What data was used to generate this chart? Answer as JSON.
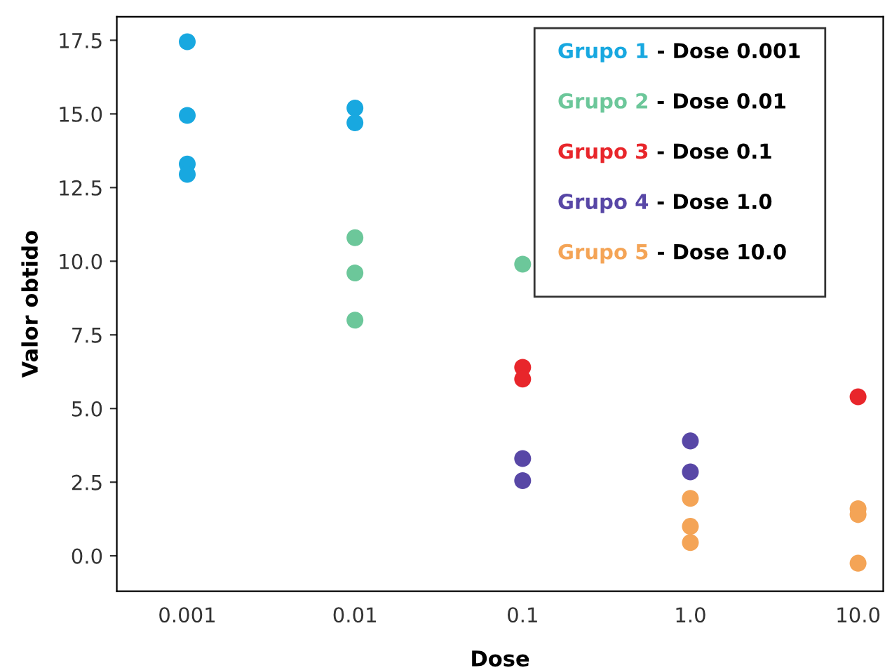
{
  "chart_data": {
    "type": "scatter",
    "xlabel": "Dose",
    "ylabel": "Valor obtido",
    "categories": [
      "0.001",
      "0.01",
      "0.1",
      "1.0",
      "10.0"
    ],
    "ylim": [
      -1.2,
      18.3
    ],
    "yticks": [
      {
        "value": 0,
        "label": "0.0"
      },
      2.5,
      {
        "value": 5,
        "label": "5.0"
      },
      7.5,
      {
        "value": 10,
        "label": "10.0"
      },
      12.5,
      {
        "value": 15,
        "label": "15.0"
      },
      17.5
    ],
    "series": [
      {
        "name": "Grupo 1 - Dose 0.001",
        "color": "#18a8e0",
        "x": [
          "0.001",
          "0.001",
          "0.001",
          "0.001",
          "0.01",
          "0.01"
        ],
        "values": [
          17.45,
          14.95,
          13.3,
          12.95,
          15.2,
          14.7
        ]
      },
      {
        "name": "Grupo 2 - Dose 0.01",
        "color": "#6cc79a",
        "x": [
          "0.01",
          "0.01",
          "0.01",
          "0.1"
        ],
        "values": [
          10.8,
          9.6,
          8.0,
          9.9
        ]
      },
      {
        "name": "Grupo 3 - Dose 0.1",
        "color": "#e8262b",
        "x": [
          "0.1",
          "0.1",
          "10.0"
        ],
        "values": [
          6.4,
          6.0,
          5.4
        ]
      },
      {
        "name": "Grupo 4 - Dose 1.0",
        "color": "#5847a6",
        "x": [
          "0.1",
          "0.1",
          "1.0",
          "1.0"
        ],
        "values": [
          3.3,
          2.55,
          3.9,
          2.85
        ]
      },
      {
        "name": "Grupo 5 - Dose 10.0",
        "color": "#f4a456",
        "x": [
          "1.0",
          "1.0",
          "1.0",
          "10.0",
          "10.0",
          "10.0"
        ],
        "values": [
          1.95,
          1.0,
          0.45,
          1.6,
          1.4,
          -0.25
        ]
      }
    ],
    "marker": "circle",
    "grid": false,
    "legend": "top right"
  }
}
